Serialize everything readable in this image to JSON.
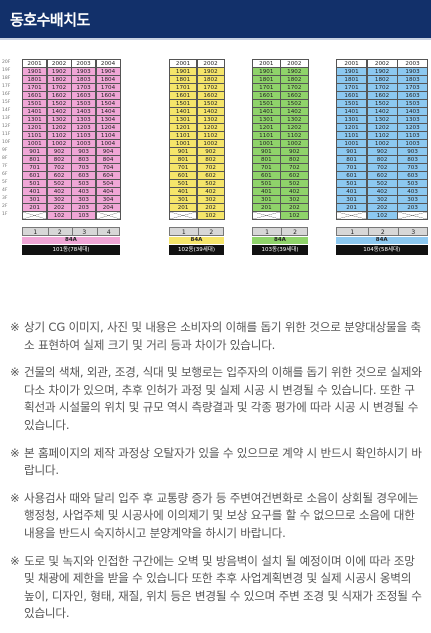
{
  "header": {
    "title": "동호수배치도"
  },
  "floor_labels": [
    "20F",
    "19F",
    "18F",
    "17F",
    "16F",
    "15F",
    "14F",
    "13F",
    "12F",
    "11F",
    "10F",
    "9F",
    "8F",
    "7F",
    "6F",
    "5F",
    "4F",
    "3F",
    "2F",
    "1F"
  ],
  "buildings": [
    {
      "color": "#f0a6d6",
      "units_per_floor": 4,
      "lines": [
        "1",
        "2",
        "3",
        "4"
      ],
      "type_label": "84A",
      "name": "101동(78세대)",
      "rows": [
        [
          "2001",
          "2002",
          "2003",
          "2004"
        ],
        [
          "1901",
          "1902",
          "1903",
          "1904"
        ],
        [
          "1801",
          "1802",
          "1803",
          "1804"
        ],
        [
          "1701",
          "1702",
          "1703",
          "1704"
        ],
        [
          "1601",
          "1602",
          "1603",
          "1604"
        ],
        [
          "1501",
          "1502",
          "1503",
          "1504"
        ],
        [
          "1401",
          "1402",
          "1403",
          "1404"
        ],
        [
          "1301",
          "1302",
          "1303",
          "1304"
        ],
        [
          "1201",
          "1202",
          "1203",
          "1204"
        ],
        [
          "1101",
          "1102",
          "1103",
          "1104"
        ],
        [
          "1001",
          "1002",
          "1003",
          "1004"
        ],
        [
          "901",
          "902",
          "903",
          "904"
        ],
        [
          "801",
          "802",
          "803",
          "804"
        ],
        [
          "701",
          "702",
          "703",
          "704"
        ],
        [
          "601",
          "602",
          "603",
          "604"
        ],
        [
          "501",
          "502",
          "503",
          "504"
        ],
        [
          "401",
          "402",
          "403",
          "404"
        ],
        [
          "301",
          "302",
          "303",
          "304"
        ],
        [
          "201",
          "202",
          "203",
          "204"
        ],
        [
          "",
          "102",
          "103",
          ""
        ]
      ]
    },
    {
      "color": "#f5e56a",
      "units_per_floor": 2,
      "lines": [
        "1",
        "2"
      ],
      "type_label": "84A",
      "name": "102동(39세대)",
      "rows": [
        [
          "2001",
          "2002"
        ],
        [
          "1901",
          "1902"
        ],
        [
          "1801",
          "1802"
        ],
        [
          "1701",
          "1702"
        ],
        [
          "1601",
          "1602"
        ],
        [
          "1501",
          "1502"
        ],
        [
          "1401",
          "1402"
        ],
        [
          "1301",
          "1302"
        ],
        [
          "1201",
          "1202"
        ],
        [
          "1101",
          "1102"
        ],
        [
          "1001",
          "1002"
        ],
        [
          "901",
          "902"
        ],
        [
          "801",
          "802"
        ],
        [
          "701",
          "702"
        ],
        [
          "601",
          "602"
        ],
        [
          "501",
          "502"
        ],
        [
          "401",
          "402"
        ],
        [
          "301",
          "302"
        ],
        [
          "201",
          "202"
        ],
        [
          "",
          "102"
        ]
      ]
    },
    {
      "color": "#8fd36a",
      "units_per_floor": 2,
      "lines": [
        "1",
        "2"
      ],
      "type_label": "84A",
      "name": "103동(39세대)",
      "rows": [
        [
          "2001",
          "2002"
        ],
        [
          "1901",
          "1902"
        ],
        [
          "1801",
          "1802"
        ],
        [
          "1701",
          "1702"
        ],
        [
          "1601",
          "1602"
        ],
        [
          "1501",
          "1502"
        ],
        [
          "1401",
          "1402"
        ],
        [
          "1301",
          "1302"
        ],
        [
          "1201",
          "1202"
        ],
        [
          "1101",
          "1102"
        ],
        [
          "1001",
          "1002"
        ],
        [
          "901",
          "902"
        ],
        [
          "801",
          "802"
        ],
        [
          "701",
          "702"
        ],
        [
          "601",
          "602"
        ],
        [
          "501",
          "502"
        ],
        [
          "401",
          "402"
        ],
        [
          "301",
          "302"
        ],
        [
          "201",
          "202"
        ],
        [
          "",
          "102"
        ]
      ]
    },
    {
      "color": "#8cc8f0",
      "units_per_floor": 3,
      "lines": [
        "1",
        "2",
        "3"
      ],
      "type_label": "84A",
      "name": "104동(58세대)",
      "rows": [
        [
          "2001",
          "2002",
          "2003"
        ],
        [
          "1901",
          "1902",
          "1903"
        ],
        [
          "1801",
          "1802",
          "1803"
        ],
        [
          "1701",
          "1702",
          "1703"
        ],
        [
          "1601",
          "1602",
          "1603"
        ],
        [
          "1501",
          "1502",
          "1503"
        ],
        [
          "1401",
          "1402",
          "1403"
        ],
        [
          "1301",
          "1302",
          "1303"
        ],
        [
          "1201",
          "1202",
          "1203"
        ],
        [
          "1101",
          "1102",
          "1103"
        ],
        [
          "1001",
          "1002",
          "1003"
        ],
        [
          "901",
          "902",
          "903"
        ],
        [
          "801",
          "802",
          "803"
        ],
        [
          "701",
          "702",
          "703"
        ],
        [
          "601",
          "602",
          "603"
        ],
        [
          "501",
          "502",
          "503"
        ],
        [
          "401",
          "402",
          "403"
        ],
        [
          "301",
          "302",
          "303"
        ],
        [
          "201",
          "202",
          "203"
        ],
        [
          "",
          "102",
          ""
        ]
      ]
    }
  ],
  "notes": [
    {
      "mark": "※",
      "text": "상기 CG 이미지, 사진 및 내용은 소비자의 이해를 돕기 위한 것으로 분양대상물을 축소 표현하여 실제 크기 및 거리 등과 차이가 있습니다."
    },
    {
      "mark": "※",
      "text": "건물의 색채, 외관, 조경, 식대 및 보행로는 입주자의 이해를 돕기 위한 것으로 실제와 다소 차이가 있으며, 추후 인허가 과정 및 실제 시공 시 변경될 수 있습니다. 또한 구획선과 시설물의 위치 및 규모 역시 측량결과 및 각종 평가에 따라 시공 시 변경될 수 있습니다."
    },
    {
      "mark": "※",
      "text": "본 홈페이지의 제작 과정상 오탈자가 있을 수 있으므로 계약 시 반드시 확인하시기 바랍니다."
    },
    {
      "mark": "※",
      "text": "사용검사 때와 달리 입주 후 교통량 증가 등 주변여건변화로 소음이 상회될 경우에는 행정청, 사업주체 및 시공사에 이의제기 및 보상 요구를 할 수 없으므로 소음에 대한 내용을 반드시 숙지하시고 분양계약을 하시기 바랍니다."
    },
    {
      "mark": "※",
      "text": "도로 및 녹지와 인접한 구간에는 오벽 및 방음벽이 설치 될 예정이며 이에 따라 조망 및 채광에 제한을 받을 수 있습니다 또한 추후 사업계획변경 및 실제 시공시 옹벽의 높이, 디자인, 형태, 재질, 위치 등은 변경될 수 있으며 주변 조경 및 식재가 조정될 수 있습니다."
    }
  ]
}
